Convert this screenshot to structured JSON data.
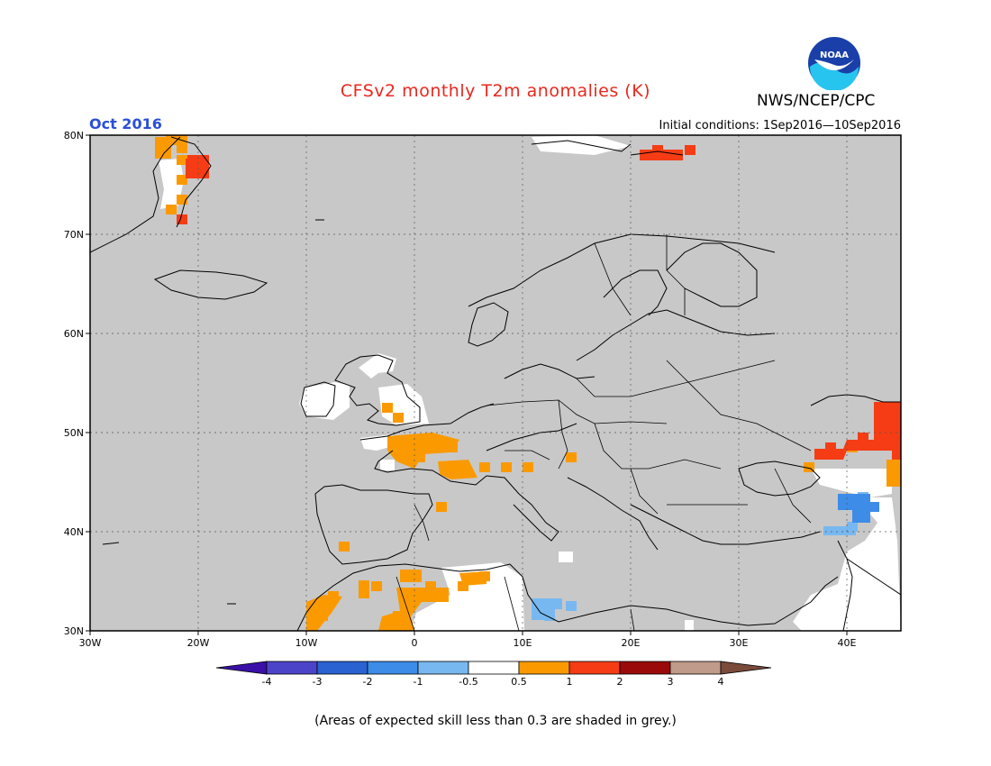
{
  "header": {
    "title": "CFSv2 monthly T2m anomalies (K)",
    "month": "Oct 2016",
    "initial_conditions": "Initial conditions: 1Sep2016—10Sep2016",
    "agency": "NWS/NCEP/CPC",
    "logo_text": "NOAA"
  },
  "map": {
    "lon_range": [
      -30,
      45
    ],
    "lat_range": [
      30,
      80
    ],
    "lon_ticks": [
      {
        "value": -30,
        "label": "30W"
      },
      {
        "value": -20,
        "label": "20W"
      },
      {
        "value": -10,
        "label": "10W"
      },
      {
        "value": 0,
        "label": "0"
      },
      {
        "value": 10,
        "label": "10E"
      },
      {
        "value": 20,
        "label": "20E"
      },
      {
        "value": 30,
        "label": "30E"
      },
      {
        "value": 40,
        "label": "40E"
      }
    ],
    "lat_ticks": [
      {
        "value": 80,
        "label": "80N"
      },
      {
        "value": 70,
        "label": "70N"
      },
      {
        "value": 60,
        "label": "60N"
      },
      {
        "value": 50,
        "label": "50N"
      },
      {
        "value": 40,
        "label": "40N"
      },
      {
        "value": 30,
        "label": "30N"
      }
    ],
    "background_color": "#c8c8c8",
    "anomaly_cells": [
      {
        "lon": -23,
        "lat": 79,
        "class": "0.5-1"
      },
      {
        "lon": -22,
        "lat": 79,
        "class": "0.5-1"
      },
      {
        "lon": -22,
        "lat": 77,
        "class": "0.5-1"
      },
      {
        "lon": -21,
        "lat": 77,
        "class": "1-2"
      },
      {
        "lon": -20,
        "lat": 77,
        "class": "1-2"
      },
      {
        "lon": -22,
        "lat": 75,
        "class": "0.5-1"
      },
      {
        "lon": -22,
        "lat": 73,
        "class": "0.5-1"
      },
      {
        "lon": -23,
        "lat": 72,
        "class": "0.5-1"
      },
      {
        "lon": -22,
        "lat": 71,
        "class": "1-2"
      },
      {
        "lon": 22,
        "lat": 78,
        "class": "1-2"
      },
      {
        "lon": 25,
        "lat": 78,
        "class": "1-2"
      },
      {
        "lon": -3,
        "lat": 52,
        "class": "0.5-1"
      },
      {
        "lon": -2,
        "lat": 51,
        "class": "0.5-1"
      },
      {
        "lon": -1,
        "lat": 48,
        "class": "0.5-1"
      },
      {
        "lon": 1,
        "lat": 48,
        "class": "0.5-1"
      },
      {
        "lon": 3,
        "lat": 48,
        "class": "0.5-1"
      },
      {
        "lon": 0,
        "lat": 47,
        "class": "0.5-1"
      },
      {
        "lon": 4,
        "lat": 46,
        "class": "0.5-1"
      },
      {
        "lon": 6,
        "lat": 46,
        "class": "0.5-1"
      },
      {
        "lon": 8,
        "lat": 46,
        "class": "0.5-1"
      },
      {
        "lon": 10,
        "lat": 46,
        "class": "0.5-1"
      },
      {
        "lon": 14,
        "lat": 47,
        "class": "0.5-1"
      },
      {
        "lon": 2,
        "lat": 42,
        "class": "0.5-1"
      },
      {
        "lon": -7,
        "lat": 38,
        "class": "0.5-1"
      },
      {
        "lon": -1,
        "lat": 35,
        "class": "0.5-1"
      },
      {
        "lon": 1,
        "lat": 34,
        "class": "0.5-1"
      },
      {
        "lon": 4,
        "lat": 34,
        "class": "0.5-1"
      },
      {
        "lon": 6,
        "lat": 35,
        "class": "0.5-1"
      },
      {
        "lon": -4,
        "lat": 34,
        "class": "0.5-1"
      },
      {
        "lon": -8,
        "lat": 33,
        "class": "0.5-1"
      },
      {
        "lon": -9,
        "lat": 31,
        "class": "0.5-1"
      },
      {
        "lon": -2,
        "lat": 31,
        "class": "0.5-1"
      },
      {
        "lon": 36,
        "lat": 46,
        "class": "0.5-1"
      },
      {
        "lon": 40,
        "lat": 48,
        "class": "0.5-1"
      },
      {
        "lon": 44,
        "lat": 46,
        "class": "0.5-1"
      },
      {
        "lon": 44,
        "lat": 51,
        "class": "1-2"
      },
      {
        "lon": 44,
        "lat": 49,
        "class": "1-2"
      },
      {
        "lon": 38,
        "lat": 48,
        "class": "1-2"
      },
      {
        "lon": 41,
        "lat": 49,
        "class": "1-2"
      },
      {
        "lon": 41,
        "lat": 43,
        "class": "-1--0.5"
      },
      {
        "lon": 42,
        "lat": 42,
        "class": "-2--1"
      },
      {
        "lon": 40,
        "lat": 40,
        "class": "-1--0.5"
      },
      {
        "lon": 12,
        "lat": 32,
        "class": "-1--0.5"
      },
      {
        "lon": 14,
        "lat": 32,
        "class": "-1--0.5"
      },
      {
        "lon": 12,
        "lat": 31,
        "class": "-1--0.5"
      }
    ],
    "white_regions_note": "near-zero anomaly"
  },
  "colorbar": {
    "labels": [
      "-4",
      "-3",
      "-2",
      "-1",
      "-0.5",
      "0.5",
      "1",
      "2",
      "3",
      "4"
    ],
    "colors": [
      "#3a10a8",
      "#4c44c8",
      "#2a62d2",
      "#3c8ce8",
      "#78b8f0",
      "#ffffff",
      "#fa9a00",
      "#f53c14",
      "#9a0a0a",
      "#c09a8a",
      "#7a4a3a"
    ]
  },
  "footnote": "(Areas of expected skill less than 0.3 are shaded in grey.)"
}
